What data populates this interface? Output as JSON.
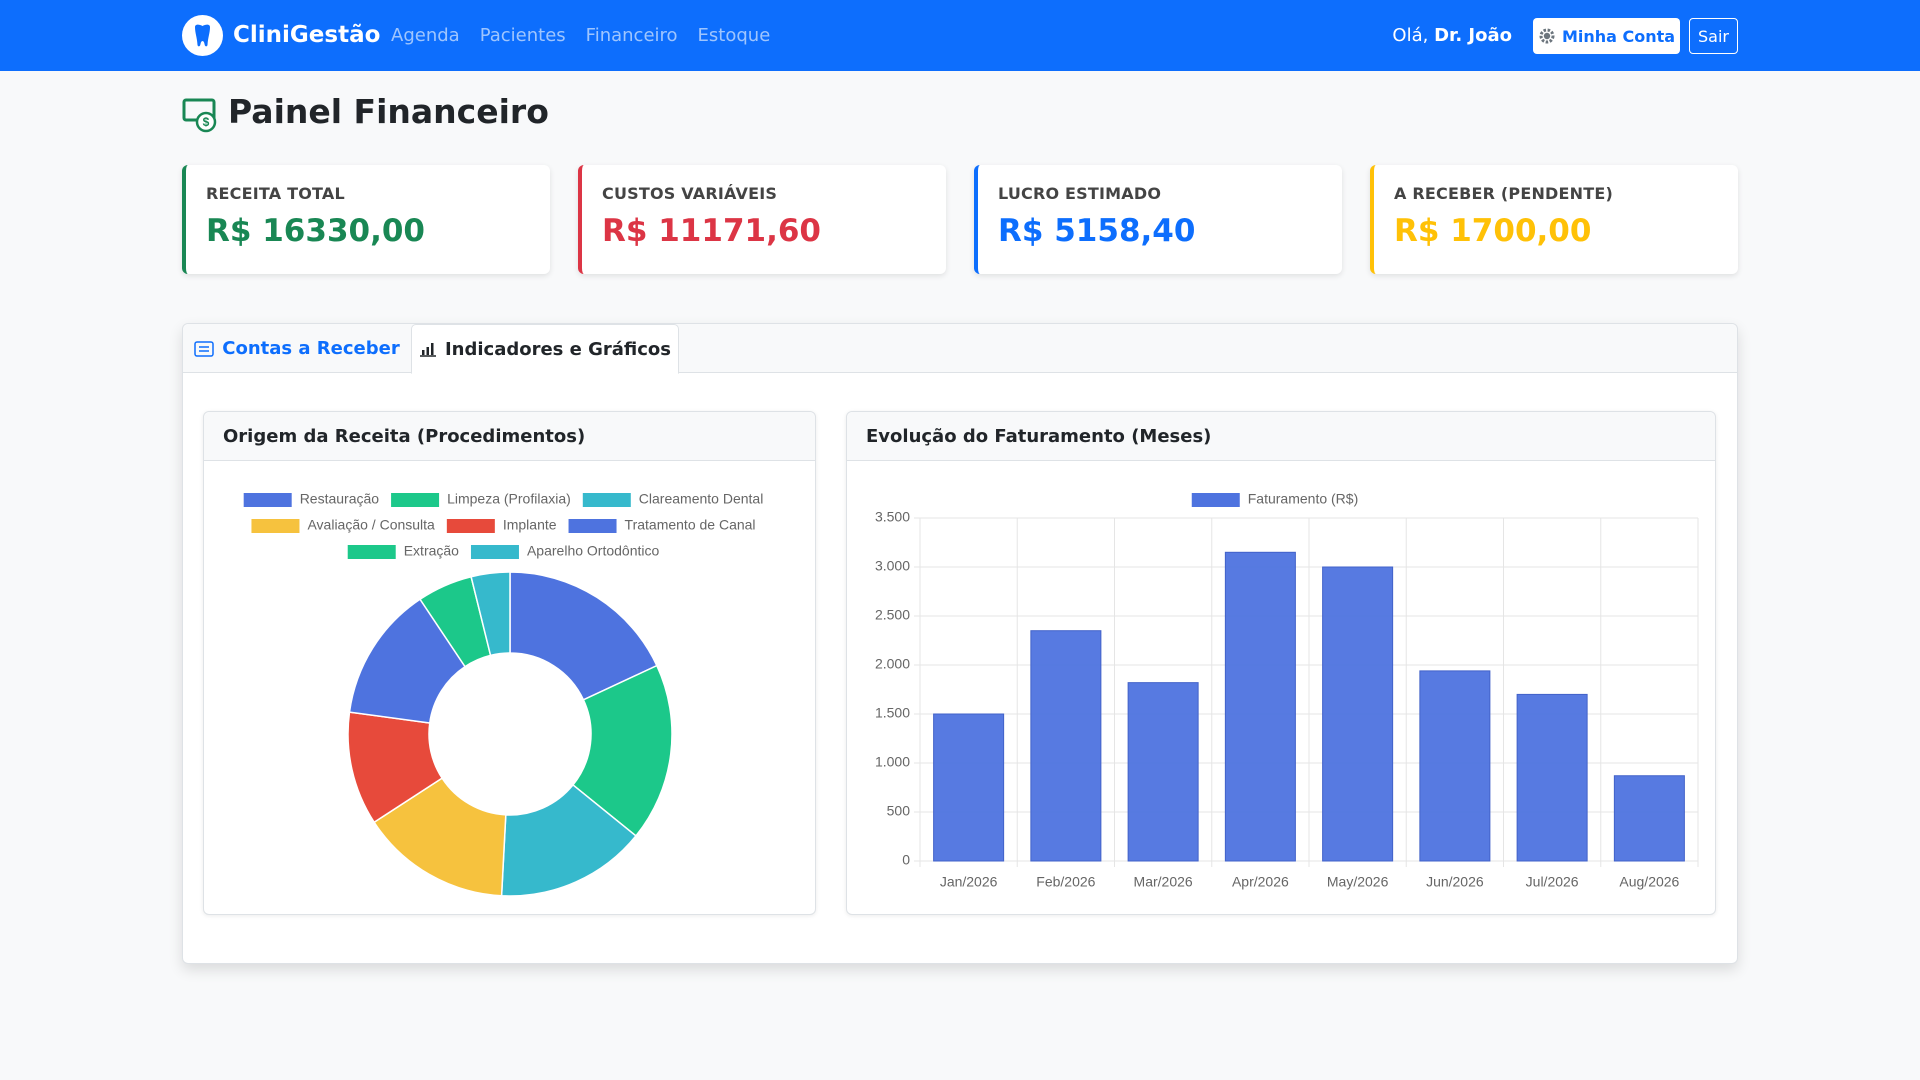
{
  "navbar": {
    "brand": "CliniGestão",
    "links": [
      "Agenda",
      "Pacientes",
      "Financeiro",
      "Estoque"
    ],
    "greeting": "Olá,",
    "user": "Dr. João",
    "account_button": "Minha Conta",
    "logout_button": "Sair"
  },
  "header": {
    "title": "Painel Financeiro"
  },
  "cards": [
    {
      "label": "RECEITA TOTAL",
      "value": "R$ 16330,00",
      "color": "#198754"
    },
    {
      "label": "CUSTOS VARIÁVEIS",
      "value": "R$ 11171,60",
      "color": "#dc3545"
    },
    {
      "label": "LUCRO ESTIMADO",
      "value": "R$ 5158,40",
      "color": "#0d6efd"
    },
    {
      "label": "A RECEBER (PENDENTE)",
      "value": "R$ 1700,00",
      "color": "#ffc107"
    }
  ],
  "tabs": [
    "Contas a Receber",
    "Indicadores e Gráficos"
  ],
  "chart_data": [
    {
      "type": "pie",
      "title": "Origem da Receita (Procedimentos)",
      "categories": [
        "Restauração",
        "Limpeza (Profilaxia)",
        "Clareamento Dental",
        "Avaliação / Consulta",
        "Implante",
        "Tratamento de Canal",
        "Extração",
        "Aparelho Ortodôntico"
      ],
      "values": [
        2950,
        2900,
        2450,
        2450,
        1850,
        2200,
        900,
        630
      ],
      "colors": [
        "#4e73df",
        "#1cc88a",
        "#36b9cc",
        "#f6c23e",
        "#e74a3b",
        "#4e73df",
        "#1cc88a",
        "#36b9cc"
      ]
    },
    {
      "type": "bar",
      "title": "Evolução do Faturamento (Meses)",
      "categories": [
        "Jan/2026",
        "Feb/2026",
        "Mar/2026",
        "Apr/2026",
        "May/2026",
        "Jun/2026",
        "Jul/2026",
        "Aug/2026"
      ],
      "series": [
        {
          "name": "Faturamento (R$)",
          "color": "#4e73df",
          "values": [
            1500,
            2350,
            1820,
            3150,
            3000,
            1940,
            1700,
            870
          ]
        }
      ],
      "ylim": [
        0,
        3500
      ],
      "yticks": [
        0,
        500,
        {
          "value": 1000,
          "label": "1.000"
        },
        {
          "value": 1500,
          "label": "1.500"
        },
        {
          "value": 2000,
          "label": "2.000"
        },
        {
          "value": 2500,
          "label": "2.500"
        },
        {
          "value": 3000,
          "label": "3.000"
        },
        {
          "value": 3500,
          "label": "3.500"
        }
      ],
      "grid": true
    }
  ]
}
